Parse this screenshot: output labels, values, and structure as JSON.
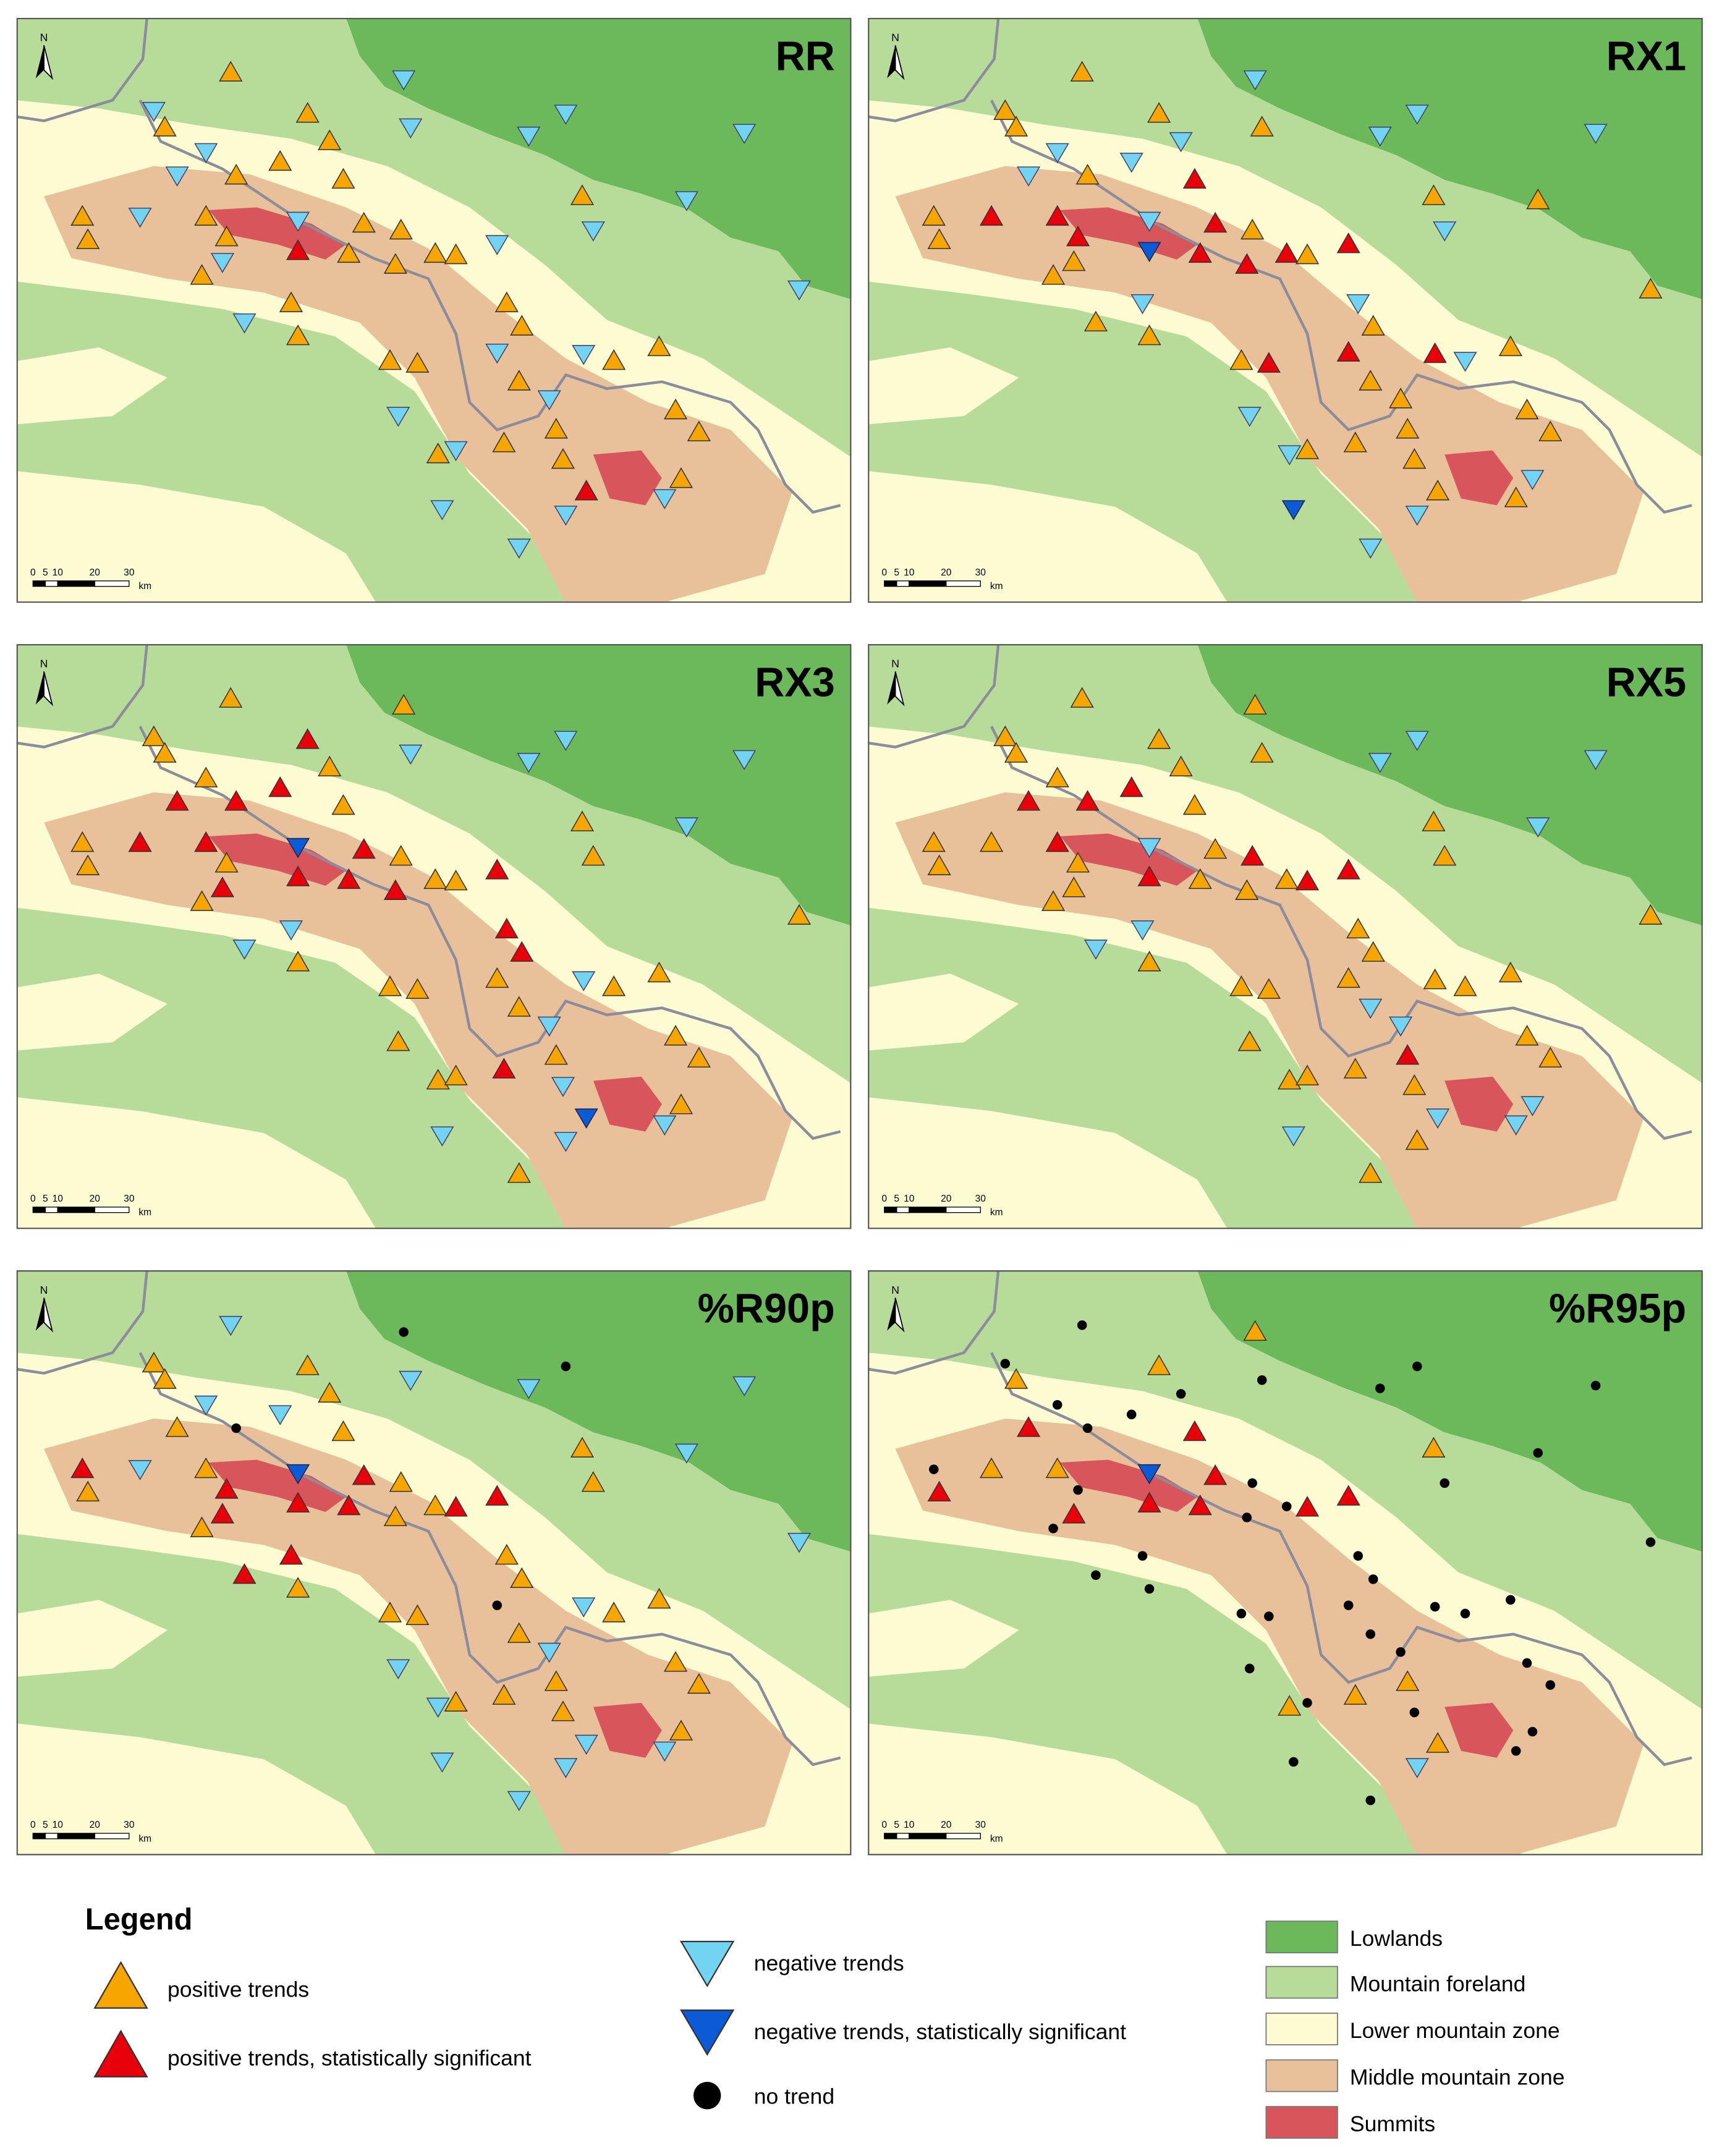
{
  "panels": [
    {
      "title": "RR"
    },
    {
      "title": "RX1"
    },
    {
      "title": "RX3"
    },
    {
      "title": "RX5"
    },
    {
      "title": "%R90p"
    },
    {
      "title": "%R95p"
    }
  ],
  "north": "N",
  "scale_bar": {
    "labels": [
      "0",
      "5",
      "10",
      "20",
      "30"
    ],
    "unit": "km"
  },
  "legend": {
    "title": "Legend",
    "trend_items": [
      "positive trends",
      "positive trends, statistically significant",
      "negative trends",
      "negative trends, statistically significant",
      "no trend"
    ],
    "zone_items": [
      "Lowlands",
      "Mountain foreland",
      "Lower mountain zone",
      "Middle mountain zone",
      "Summits"
    ]
  }
}
